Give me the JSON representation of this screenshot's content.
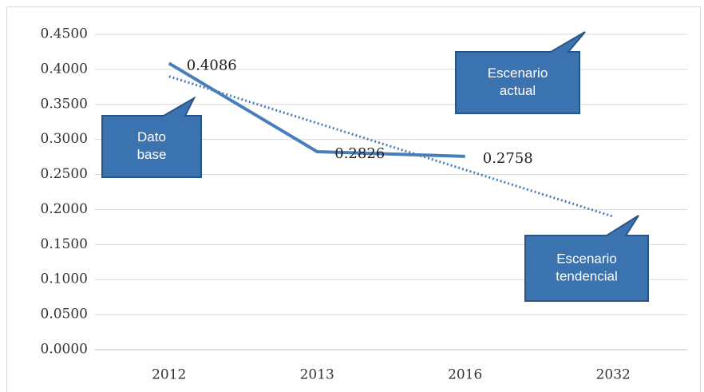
{
  "chart_data": {
    "type": "line",
    "categories": [
      "2012",
      "2013",
      "2016",
      "2032"
    ],
    "series": [
      {
        "color": "#4a7ebb",
        "values": [
          0.4086,
          0.2826,
          0.2758,
          null
        ]
      }
    ],
    "trend": {
      "color": "#4a7ebb",
      "values": [
        0.39,
        0.3233,
        0.2567,
        0.19
      ]
    },
    "ylim": [
      0,
      0.45
    ],
    "yticks": [
      {
        "value": 0,
        "label": "0.0000"
      },
      {
        "value": 0.05,
        "label": "0.0500"
      },
      {
        "value": 0.1,
        "label": "0.1000"
      },
      {
        "value": 0.15,
        "label": "0.1500"
      },
      {
        "value": 0.2,
        "label": "0.2000"
      },
      {
        "value": 0.25,
        "label": "0.2500"
      },
      {
        "value": 0.3,
        "label": "0.3000"
      },
      {
        "value": 0.35,
        "label": "0.3500"
      },
      {
        "value": 0.4,
        "label": "0.4000"
      },
      {
        "value": 0.45,
        "label": "0.4500"
      }
    ],
    "grid": true,
    "annotations": [
      {
        "lines": [
          "Dato",
          "base"
        ]
      },
      {
        "lines": [
          "Escenario",
          "actual"
        ]
      },
      {
        "lines": [
          "Escenario",
          "tendencial"
        ]
      }
    ]
  }
}
